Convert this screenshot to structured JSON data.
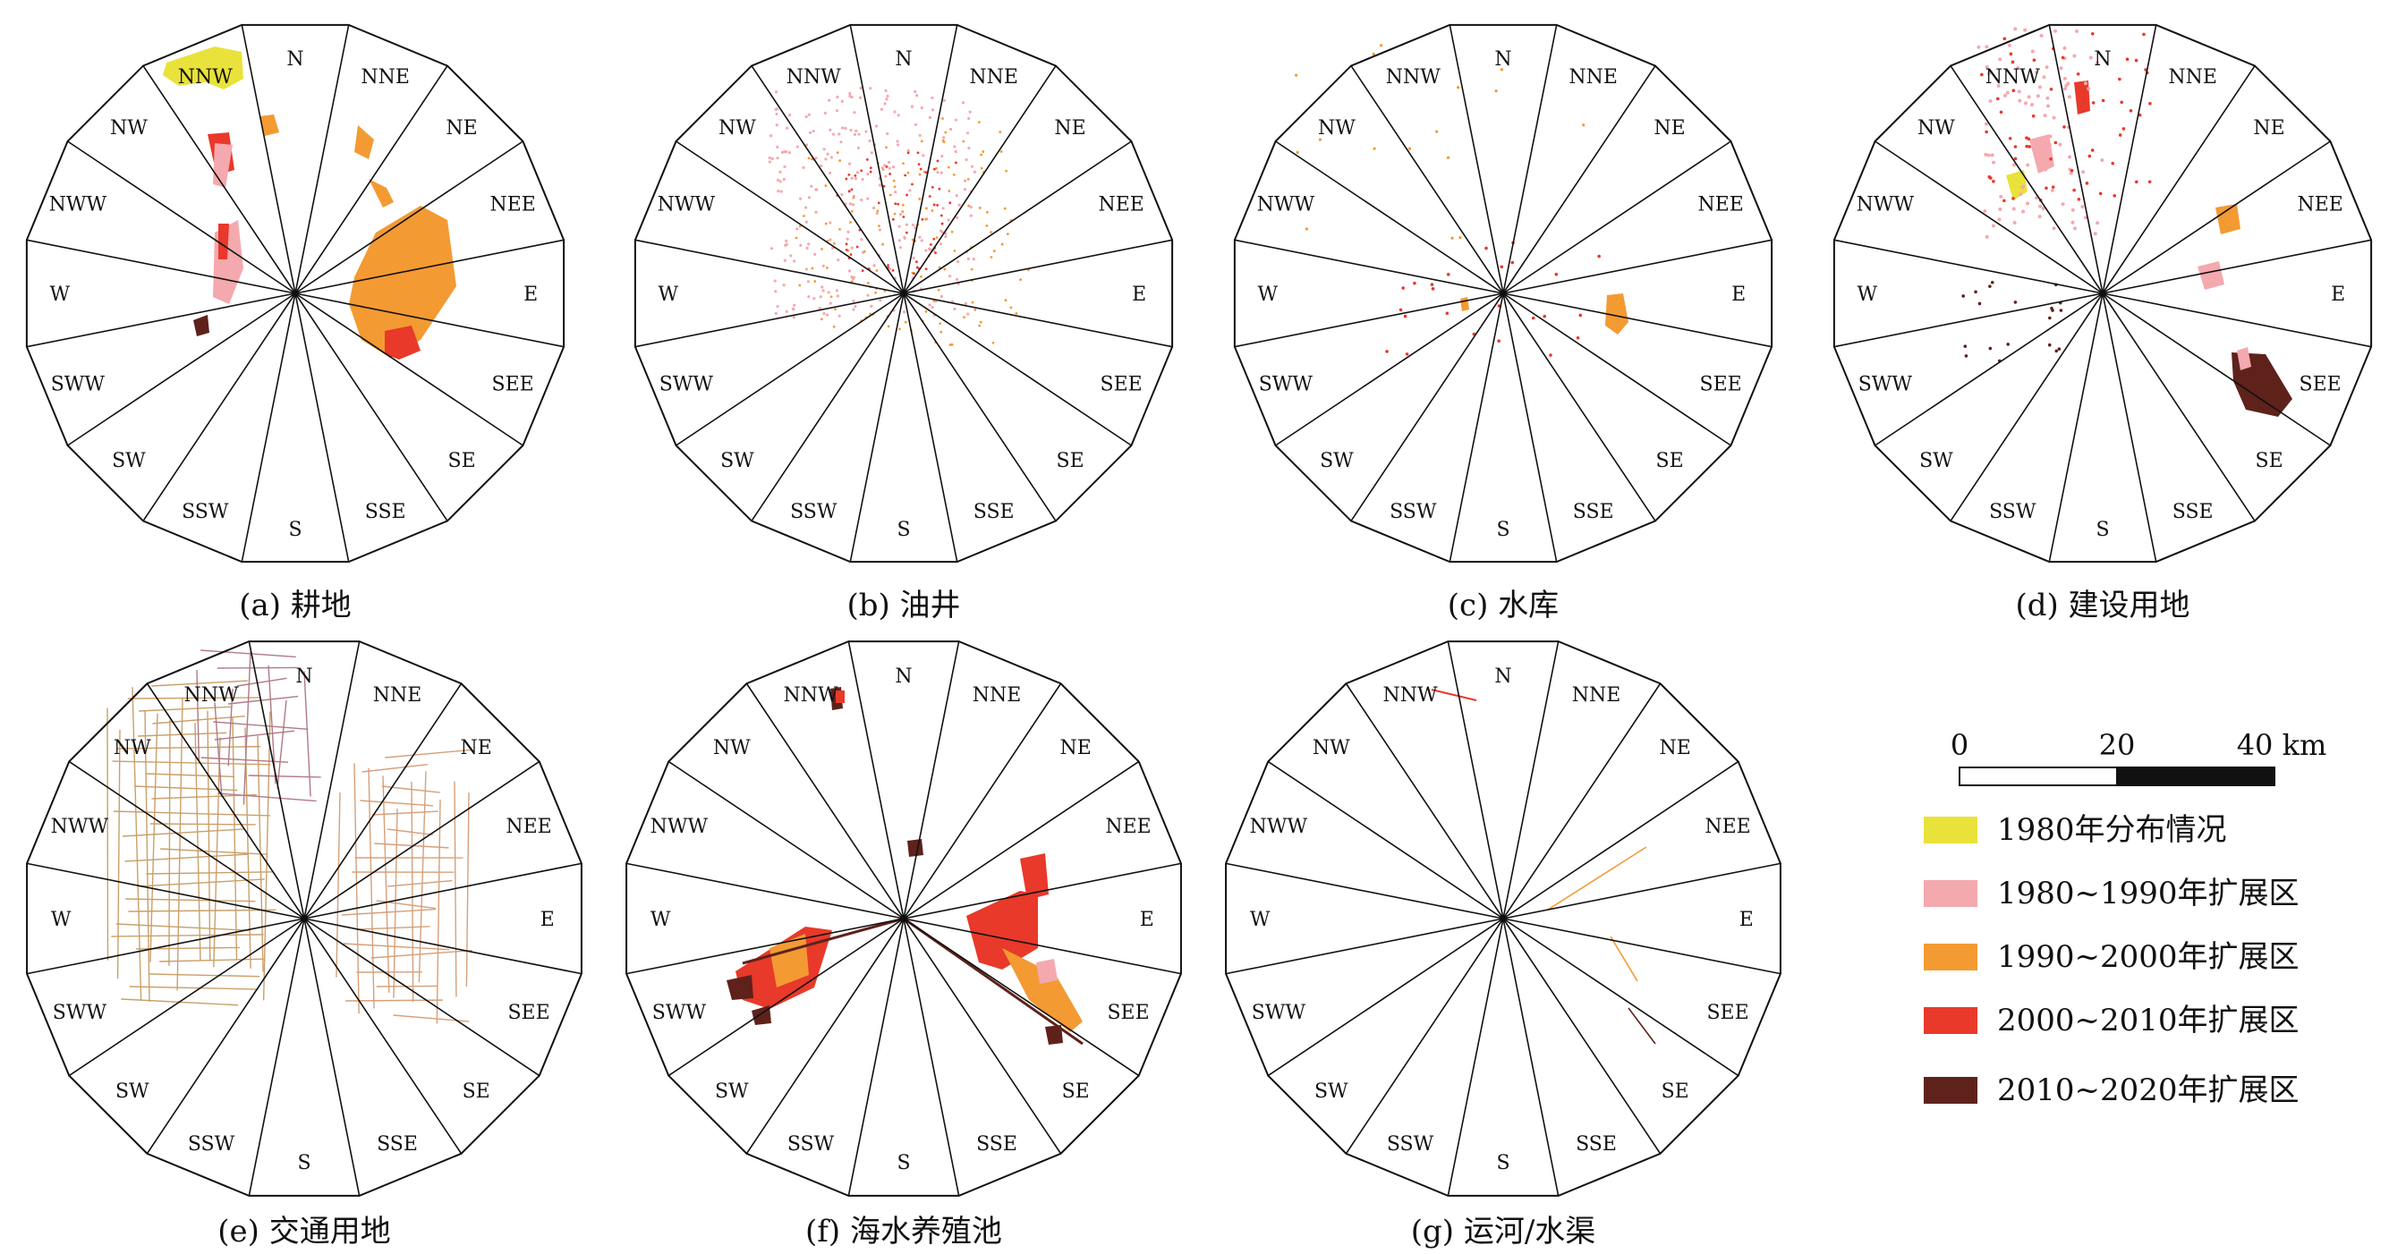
{
  "directions": [
    "N",
    "NNE",
    "NE",
    "NEE",
    "E",
    "SEE",
    "SE",
    "SSE",
    "S",
    "SSW",
    "SW",
    "SWW",
    "W",
    "NWW",
    "NW",
    "NNW"
  ],
  "panels": [
    {
      "id": "a",
      "caption": "(a) 耕地"
    },
    {
      "id": "b",
      "caption": "(b) 油井"
    },
    {
      "id": "c",
      "caption": "(c) 水库"
    },
    {
      "id": "d",
      "caption": "(d) 建设用地"
    },
    {
      "id": "e",
      "caption": "(e) 交通用地"
    },
    {
      "id": "f",
      "caption": "(f) 海水养殖池"
    },
    {
      "id": "g",
      "caption": "(g) 运河/水渠"
    }
  ],
  "scale_bar": {
    "labels": [
      "0",
      "20",
      "40 km"
    ]
  },
  "legend": [
    {
      "label": "1980年分布情况",
      "color": "#e8e23a"
    },
    {
      "label": "1980~1990年扩展区",
      "color": "#f4a9ae"
    },
    {
      "label": "1990~2000年扩展区",
      "color": "#f39a33"
    },
    {
      "label": "2000~2010年扩展区",
      "color": "#e8392a"
    },
    {
      "label": "2010~2020年扩展区",
      "color": "#5e221b"
    }
  ]
}
